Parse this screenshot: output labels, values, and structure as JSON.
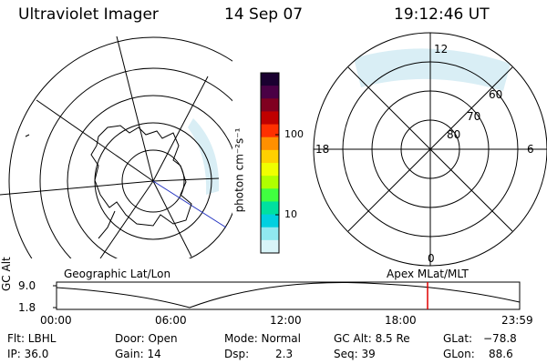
{
  "header": {
    "instrument": "Ultraviolet Imager",
    "date": "14 Sep 07",
    "time": "19:12:46 UT"
  },
  "left_panel": {
    "label": "Geographic Lat/Lon"
  },
  "right_panel": {
    "label": "Apex MLat/MLT",
    "mlt_labels": {
      "top": "12",
      "left": "18",
      "right": "6",
      "bottom": "0"
    },
    "lat_labels": [
      "60",
      "70",
      "80"
    ]
  },
  "colorbar": {
    "unit_label": "photon cm⁻²s⁻¹",
    "tick_labels": [
      "100",
      "10"
    ],
    "colors": [
      "#1a0030",
      "#4a0045",
      "#800020",
      "#c00000",
      "#ff3000",
      "#ff9000",
      "#ffd000",
      "#f0ff00",
      "#b0ff00",
      "#40ff40",
      "#00e0a0",
      "#00d0e0",
      "#90e8f0",
      "#d8f4f8"
    ]
  },
  "timeline": {
    "ylabel": "GC Alt",
    "y_ticks": [
      "9.0",
      "1.8"
    ],
    "x_ticks": [
      "00:00",
      "06:00",
      "12:00",
      "18:00",
      "23:59"
    ],
    "current_time_marker": "19:12"
  },
  "info": {
    "flt": "Flt: LBHL",
    "ip": "IP: 36.0",
    "door": "Door: Open",
    "gain": "Gain: 14",
    "mode": "Mode: Normal",
    "dsp_label": "Dsp:",
    "dsp_value": "2.3",
    "gc_alt": "GC Alt: 8.5 Re",
    "seq": "Seq: 39",
    "glat_label": "GLat:",
    "glat_value": "−78.8",
    "glon_label": "GLon:",
    "glon_value": "88.6"
  }
}
